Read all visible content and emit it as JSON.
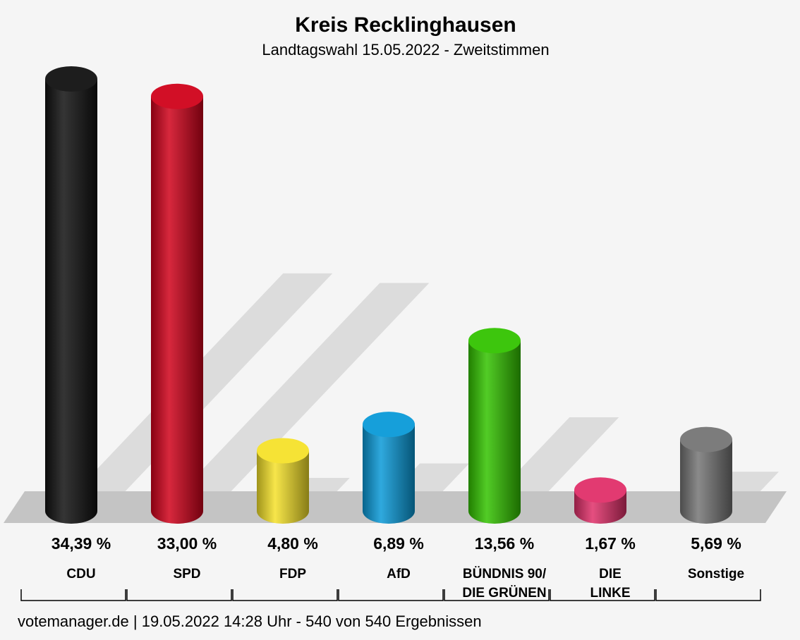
{
  "chart_data": {
    "type": "bar",
    "title": "Kreis Recklinghausen",
    "subtitle": "Landtagswahl 15.05.2022  - Zweitstimmen",
    "categories": [
      [
        "CDU"
      ],
      [
        "SPD"
      ],
      [
        "FDP"
      ],
      [
        "AfD"
      ],
      [
        "BÜNDNIS 90/",
        "DIE GRÜNEN"
      ],
      [
        "DIE",
        "LINKE"
      ],
      [
        "Sonstige"
      ]
    ],
    "values": [
      34.39,
      33.0,
      4.8,
      6.89,
      13.56,
      1.67,
      5.69
    ],
    "value_labels": [
      "34,39 %",
      "33,00 %",
      "4,80 %",
      "6,89 %",
      "13,56 %",
      "1,67 %",
      "5,69 %"
    ],
    "colors": [
      "#111111",
      "#d0021b",
      "#f5e22a",
      "#0a9ad8",
      "#33c300",
      "#e0306a",
      "#757575"
    ],
    "footer": "votemanager.de | 19.05.2022 14:28 Uhr - 540 von 540 Ergebnissen"
  }
}
